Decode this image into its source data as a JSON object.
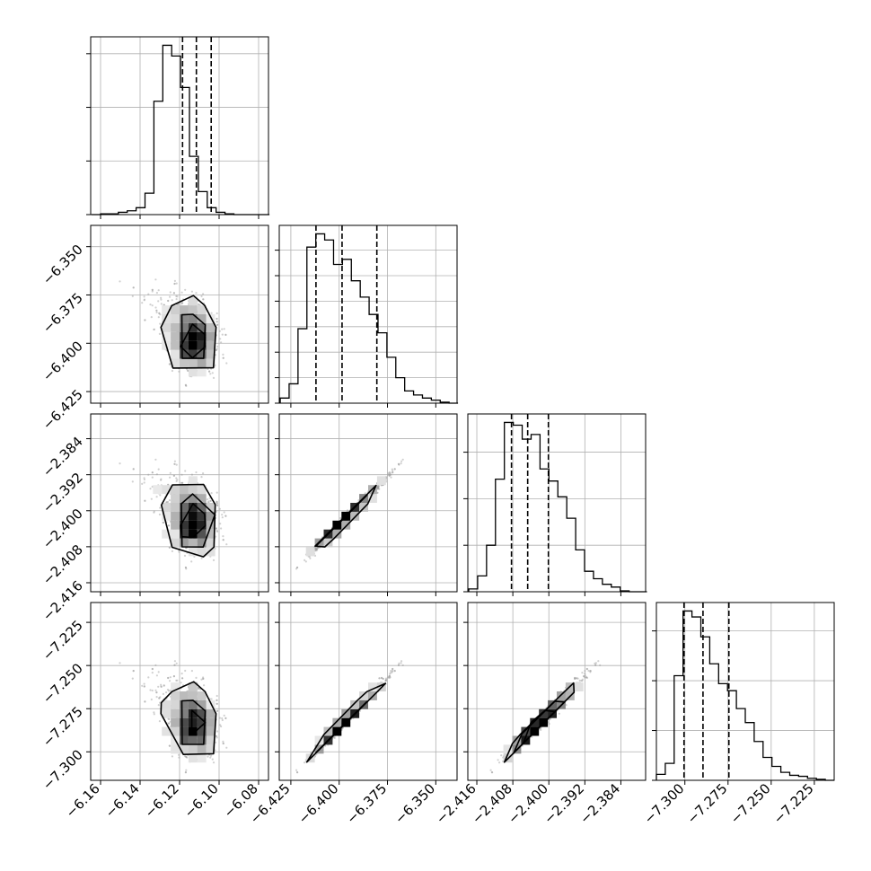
{
  "chart_data": {
    "type": "corner",
    "grid": true,
    "colors": {
      "marks": "#000000",
      "grid": "#b0b0b0",
      "scatter": "#9a9a9a"
    },
    "parameters": [
      {
        "range": [
          -6.165,
          -6.075
        ],
        "ticks": [
          "−6.16",
          "−6.14",
          "−6.12",
          "−6.10",
          "−6.08"
        ],
        "tick_values": [
          -6.16,
          -6.14,
          -6.12,
          -6.1,
          -6.08
        ]
      },
      {
        "range": [
          -6.431,
          -6.339
        ],
        "ticks": [
          "−6.425",
          "−6.400",
          "−6.375",
          "−6.350"
        ],
        "tick_values": [
          -6.425,
          -6.4,
          -6.375,
          -6.35
        ]
      },
      {
        "range": [
          -2.418,
          -2.3785
        ],
        "ticks": [
          "−2.416",
          "−2.408",
          "−2.400",
          "−2.392",
          "−2.384"
        ],
        "tick_values": [
          -2.416,
          -2.408,
          -2.4,
          -2.392,
          -2.384
        ]
      },
      {
        "range": [
          -7.3165,
          -7.2135
        ],
        "ticks": [
          "−7.300",
          "−7.275",
          "−7.250",
          "−7.225"
        ],
        "tick_values": [
          -7.3,
          -7.275,
          -7.25,
          -7.225
        ]
      }
    ],
    "histograms": [
      {
        "bin_start": -6.1645,
        "bin_width": 0.0045,
        "counts": [
          0,
          1,
          1,
          3,
          5,
          9,
          28,
          148,
          221,
          207,
          166,
          76,
          30,
          9,
          3,
          1,
          0,
          0,
          0,
          0
        ],
        "quantiles": [
          -6.1185,
          -6.1115,
          -6.104
        ]
      },
      {
        "bin_start": -6.4305,
        "bin_width": 0.0046,
        "counts": [
          5,
          19,
          73,
          153,
          166,
          160,
          136,
          141,
          120,
          104,
          87,
          69,
          45,
          25,
          12,
          8,
          5,
          3,
          1,
          0
        ],
        "quantiles": [
          -6.412,
          -6.3985,
          -6.3805
        ]
      },
      {
        "bin_start": -2.4178,
        "bin_width": 0.00198,
        "counts": [
          3,
          17,
          50,
          121,
          182,
          179,
          164,
          169,
          132,
          119,
          102,
          79,
          45,
          22,
          14,
          8,
          5,
          1,
          0,
          0
        ],
        "quantiles": [
          -2.4083,
          -2.4047,
          -2.4001
        ]
      },
      {
        "bin_start": -7.3165,
        "bin_width": 0.00515,
        "counts": [
          6,
          17,
          105,
          170,
          164,
          144,
          117,
          97,
          90,
          72,
          58,
          39,
          23,
          14,
          8,
          5,
          4,
          2,
          1,
          0
        ],
        "quantiles": [
          -7.3005,
          -7.2895,
          -7.2745
        ]
      }
    ]
  }
}
